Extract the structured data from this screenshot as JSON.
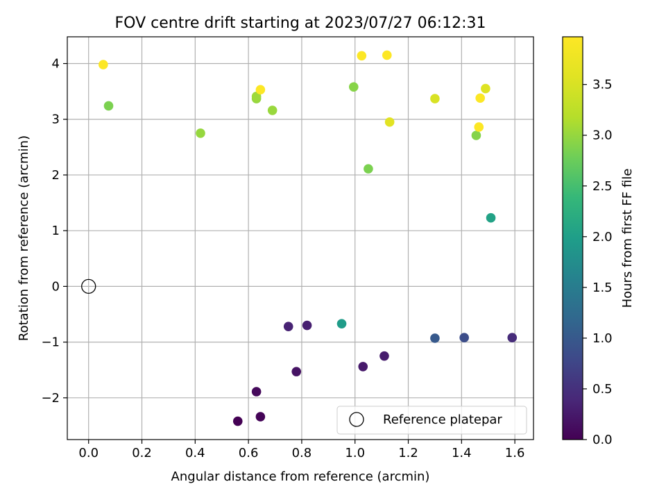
{
  "chart_data": {
    "type": "scatter",
    "title": "FOV centre drift starting at 2023/07/27 06:12:31",
    "xlabel": "Angular distance from reference (arcmin)",
    "ylabel": "Rotation from reference (arcmin)",
    "xlim": [
      -0.08,
      1.67
    ],
    "ylim": [
      -2.75,
      4.48
    ],
    "xticks": [
      0.0,
      0.2,
      0.4,
      0.6,
      0.8,
      1.0,
      1.2,
      1.4,
      1.6
    ],
    "xtick_labels": [
      "0.0",
      "0.2",
      "0.4",
      "0.6",
      "0.8",
      "1.0",
      "1.2",
      "1.4",
      "1.6"
    ],
    "yticks": [
      -2,
      -1,
      0,
      1,
      2,
      3,
      4
    ],
    "ytick_labels": [
      "−2",
      "−1",
      "0",
      "1",
      "2",
      "3",
      "4"
    ],
    "grid": true,
    "legend": {
      "position": "lower-right",
      "entries": [
        "Reference platepar"
      ]
    },
    "colormap": "viridis",
    "colorbar": {
      "label": "Hours from first FF file",
      "range": [
        0.0,
        3.97
      ],
      "ticks": [
        0.0,
        0.5,
        1.0,
        1.5,
        2.0,
        2.5,
        3.0,
        3.5
      ],
      "tick_labels": [
        "0.0",
        "0.5",
        "1.0",
        "1.5",
        "2.0",
        "2.5",
        "3.0",
        "3.5"
      ]
    },
    "reference_point": {
      "x": 0.0,
      "y": 0.0
    },
    "series": [
      {
        "points": [
          {
            "x": 0.56,
            "y": -2.42,
            "hours": 0.0
          },
          {
            "x": 0.645,
            "y": -2.34,
            "hours": 0.03
          },
          {
            "x": 0.63,
            "y": -1.89,
            "hours": 0.08
          },
          {
            "x": 0.78,
            "y": -1.53,
            "hours": 0.18
          },
          {
            "x": 1.03,
            "y": -1.44,
            "hours": 0.25
          },
          {
            "x": 1.11,
            "y": -1.25,
            "hours": 0.28
          },
          {
            "x": 0.82,
            "y": -0.7,
            "hours": 0.32
          },
          {
            "x": 0.75,
            "y": -0.72,
            "hours": 0.35
          },
          {
            "x": 1.59,
            "y": -0.92,
            "hours": 0.45
          },
          {
            "x": 1.41,
            "y": -0.92,
            "hours": 0.85
          },
          {
            "x": 1.3,
            "y": -0.93,
            "hours": 1.0
          },
          {
            "x": 0.95,
            "y": -0.67,
            "hours": 1.95
          },
          {
            "x": 1.51,
            "y": 1.23,
            "hours": 2.05
          },
          {
            "x": 1.05,
            "y": 2.11,
            "hours": 2.85
          },
          {
            "x": 0.075,
            "y": 3.24,
            "hours": 2.85
          },
          {
            "x": 1.455,
            "y": 2.71,
            "hours": 2.9
          },
          {
            "x": 0.995,
            "y": 3.58,
            "hours": 2.92
          },
          {
            "x": 0.42,
            "y": 2.75,
            "hours": 3.0
          },
          {
            "x": 0.63,
            "y": 3.37,
            "hours": 3.0
          },
          {
            "x": 0.69,
            "y": 3.16,
            "hours": 3.02
          },
          {
            "x": 0.63,
            "y": 3.41,
            "hours": 3.05
          },
          {
            "x": 1.3,
            "y": 3.37,
            "hours": 3.5
          },
          {
            "x": 1.49,
            "y": 3.55,
            "hours": 3.55
          },
          {
            "x": 1.13,
            "y": 2.95,
            "hours": 3.6
          },
          {
            "x": 0.645,
            "y": 3.53,
            "hours": 3.95
          },
          {
            "x": 1.47,
            "y": 3.38,
            "hours": 3.95
          },
          {
            "x": 1.465,
            "y": 2.86,
            "hours": 3.95
          },
          {
            "x": 0.055,
            "y": 3.98,
            "hours": 3.96
          },
          {
            "x": 1.025,
            "y": 4.14,
            "hours": 3.96
          },
          {
            "x": 1.12,
            "y": 4.15,
            "hours": 3.97
          }
        ]
      }
    ]
  }
}
